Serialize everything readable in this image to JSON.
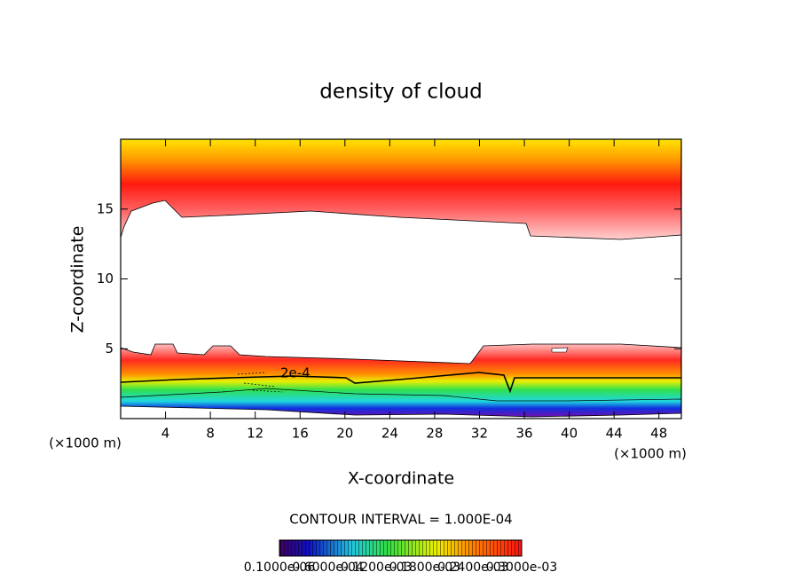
{
  "chart_data": {
    "type": "contour",
    "title": "density of cloud",
    "xlabel": "X-coordinate",
    "ylabel": "Z-coordinate",
    "x_unit": "(×1000 m)",
    "xlim": [
      0,
      50
    ],
    "ylim": [
      0,
      20
    ],
    "xticks": [
      4,
      8,
      12,
      16,
      20,
      24,
      28,
      32,
      36,
      40,
      44,
      48
    ],
    "yticks": [
      5,
      10,
      15
    ],
    "contour_labels": [
      "2e-4"
    ],
    "contour_interval_label": "CONTOUR INTERVAL = 1.000E-04",
    "colorbar_labels": [
      "0.1000e-06",
      "0.6000e-04",
      "0.1200e-03",
      "0.1800e-03",
      "0.2400e-03",
      "0.3000e-03"
    ]
  }
}
